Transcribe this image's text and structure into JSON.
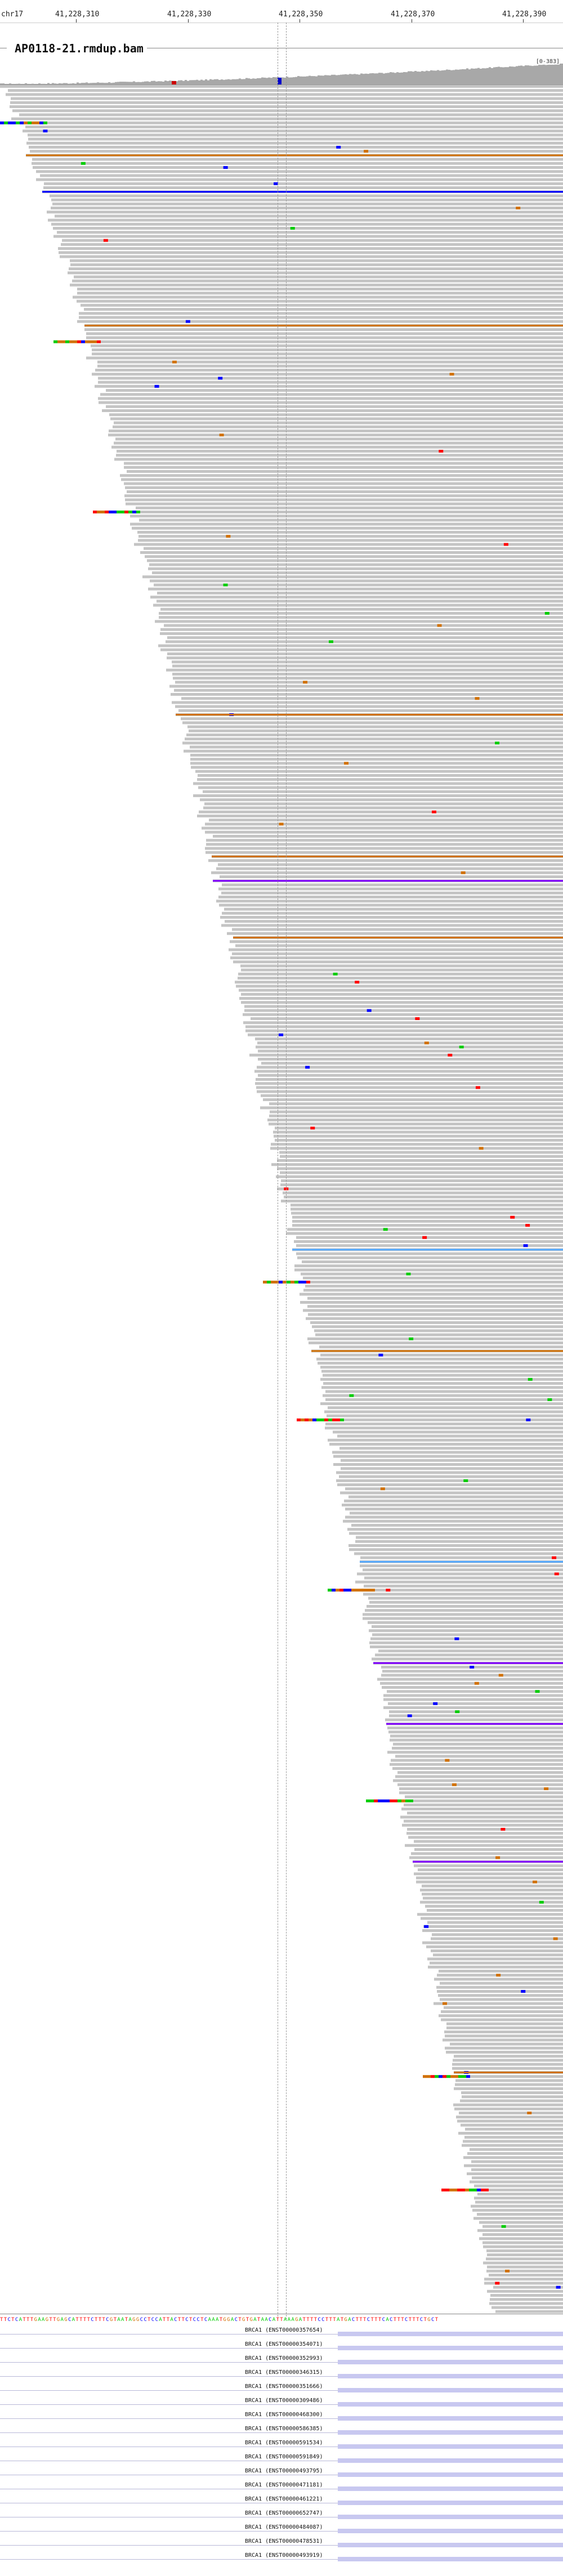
{
  "ruler": {
    "chromosome": "chr17",
    "ticks": [
      "41,228,310",
      "41,228,330",
      "41,228,350",
      "41,228,370",
      "41,228,390"
    ]
  },
  "track": {
    "title": "AP0118-21.rmdup.bam",
    "coverage_range": "[0-383]"
  },
  "sequence": "TTCTCATTTGAAGTTGAGCATTTTCTTTCGTAATAGGCCTCCATTACTTCTCCTCAAATGGACTGTGATAACATTAAAGATTTTCCTTTATGACTTTCTTTCACTTTCTTTCTGCT",
  "colors": {
    "read": "#c4c4c4",
    "A": "#00cc00",
    "C": "#0000ff",
    "G": "#d17105",
    "T": "#ff0000",
    "insertion": "#8000ff",
    "feature": "#c8c8f0"
  },
  "features": [
    {
      "label": "BRCA1 (ENST00000357654)"
    },
    {
      "label": "BRCA1 (ENST00000354071)"
    },
    {
      "label": "BRCA1 (ENST00000352993)"
    },
    {
      "label": "BRCA1 (ENST00000346315)"
    },
    {
      "label": "BRCA1 (ENST00000351666)"
    },
    {
      "label": "BRCA1 (ENST00000309486)"
    },
    {
      "label": "BRCA1 (ENST00000468300)"
    },
    {
      "label": "BRCA1 (ENST00000586385)"
    },
    {
      "label": "BRCA1 (ENST00000591534)"
    },
    {
      "label": "BRCA1 (ENST00000591849)"
    },
    {
      "label": "BRCA1 (ENST00000493795)"
    },
    {
      "label": "BRCA1 (ENST00000471181)"
    },
    {
      "label": "BRCA1 (ENST00000461221)"
    },
    {
      "label": "BRCA1 (ENST00000652747)"
    },
    {
      "label": "BRCA1 (ENST00000484087)"
    },
    {
      "label": "BRCA1 (ENST00000478531)"
    },
    {
      "label": "BRCA1 (ENST00000493919)"
    }
  ]
}
